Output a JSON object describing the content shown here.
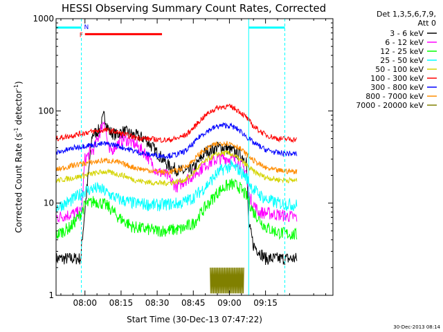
{
  "chart_data": {
    "type": "line",
    "title": "HESSI Observing Summary Count Rates, Corrected",
    "ylabel_main": "Corrected Count Rate (s",
    "ylabel_sup": "-1",
    "ylabel_mid": " detector",
    "ylabel_end": ")",
    "xlabel": "Start Time (30-Dec-13 07:47:22)",
    "timestamp": "30-Dec-2013 08:14",
    "y_scale": "log",
    "ylim": [
      1,
      1000
    ],
    "xlim_minutes": [
      -12,
      103
    ],
    "x_origin": "07:47:22",
    "x_ticks": [
      {
        "label": "08:00",
        "min": 0
      },
      {
        "label": "08:15",
        "min": 15
      },
      {
        "label": "08:30",
        "min": 30
      },
      {
        "label": "08:45",
        "min": 45
      },
      {
        "label": "09:00",
        "min": 60
      },
      {
        "label": "09:15",
        "min": 75
      }
    ],
    "y_ticks": [
      {
        "label": "1",
        "v": 1
      },
      {
        "label": "10",
        "v": 10
      },
      {
        "label": "100",
        "v": 100
      },
      {
        "label": "1000",
        "v": 1000
      }
    ],
    "legend_header": [
      "Det 1,3,5,6,7,9,",
      "Att 0"
    ],
    "legend_placement": "right",
    "series": [
      {
        "name": "3 - 6 keV",
        "color": "#000000",
        "x": [
          -12,
          -1.5,
          -1.4,
          3,
          6,
          8,
          10,
          13,
          16,
          20,
          25,
          30,
          35,
          40,
          43,
          46,
          50,
          55,
          58,
          60,
          62,
          64,
          67,
          68,
          70,
          75,
          80,
          88
        ],
        "y": [
          2.5,
          2.5,
          3.5,
          55,
          62,
          90,
          60,
          55,
          60,
          55,
          50,
          35,
          25,
          22,
          22,
          25,
          36,
          40,
          40,
          38,
          36,
          34,
          30,
          6,
          3.5,
          2.5,
          2.5,
          2.5
        ]
      },
      {
        "name": "6 - 12 keV",
        "color": "#ff00ff",
        "x": [
          -12,
          -1.5,
          0,
          4,
          8,
          10,
          12,
          16,
          20,
          25,
          30,
          34,
          38,
          42,
          45,
          50,
          55,
          58,
          61,
          64,
          67,
          68,
          72,
          80,
          88
        ],
        "y": [
          7,
          8,
          30,
          40,
          80,
          35,
          40,
          50,
          45,
          35,
          22,
          20,
          15,
          18,
          20,
          26,
          30,
          31,
          30,
          28,
          22,
          12,
          8,
          7.5,
          7
        ]
      },
      {
        "name": "12 - 25 keV",
        "color": "#00ff00",
        "x": [
          -12,
          -6,
          -2,
          0,
          2,
          4,
          7,
          10,
          14,
          20,
          30,
          40,
          45,
          50,
          55,
          58,
          61,
          64,
          67,
          70,
          75,
          80,
          88
        ],
        "y": [
          4.5,
          5.5,
          7.5,
          9.5,
          10,
          10.5,
          10,
          9,
          7,
          5.5,
          5,
          5.2,
          6,
          9,
          13,
          15,
          16,
          15,
          12,
          8,
          5.5,
          4.8,
          4.5
        ]
      },
      {
        "name": "25 - 50 keV",
        "color": "#00ffff",
        "x": [
          -12,
          -6,
          -2,
          0,
          2,
          4,
          7,
          10,
          14,
          20,
          30,
          40,
          45,
          50,
          55,
          58,
          61,
          64,
          67,
          70,
          75,
          80,
          88
        ],
        "y": [
          9,
          10.5,
          12.5,
          13.5,
          14,
          14.5,
          14,
          12.5,
          11,
          10,
          9.5,
          10,
          11.5,
          15,
          21,
          24,
          25,
          23,
          19,
          14,
          11,
          10,
          9.5
        ]
      },
      {
        "name": "50 - 100 keV",
        "color": "#d4d400",
        "x": [
          -12,
          -4,
          0,
          4,
          8,
          12,
          16,
          20,
          25,
          30,
          34,
          38,
          42,
          45,
          48,
          52,
          55,
          58,
          61,
          64,
          67,
          70,
          75,
          80,
          88
        ],
        "y": [
          17.5,
          19,
          20,
          21,
          22,
          21,
          20,
          18,
          17,
          16.5,
          16.5,
          17,
          18,
          21,
          26,
          31,
          34,
          35,
          34,
          30,
          26,
          22,
          19,
          18,
          17.5
        ]
      },
      {
        "name": "100 - 300 keV",
        "color": "#ff0000",
        "x": [
          -12,
          -4,
          0,
          4,
          8,
          12,
          16,
          20,
          25,
          30,
          34,
          38,
          42,
          45,
          48,
          52,
          55,
          58,
          61,
          64,
          67,
          70,
          75,
          80,
          88
        ],
        "y": [
          50,
          55,
          58,
          60,
          62,
          60,
          56,
          52,
          50,
          49,
          48,
          50,
          55,
          65,
          80,
          98,
          108,
          112,
          110,
          100,
          85,
          68,
          55,
          50,
          49
        ]
      },
      {
        "name": "300 - 800 keV",
        "color": "#0000ff",
        "x": [
          -12,
          -4,
          0,
          4,
          8,
          12,
          16,
          20,
          25,
          30,
          34,
          38,
          42,
          45,
          48,
          52,
          55,
          58,
          61,
          64,
          67,
          70,
          75,
          80,
          88
        ],
        "y": [
          35,
          40,
          42,
          43,
          44,
          43,
          40,
          37,
          34,
          33,
          32.5,
          33.5,
          37,
          44,
          54,
          63,
          68,
          70,
          68,
          62,
          53,
          45,
          38,
          35,
          34
        ]
      },
      {
        "name": "800 - 7000 keV",
        "color": "#ff8c00",
        "x": [
          -12,
          -4,
          0,
          4,
          8,
          12,
          16,
          20,
          25,
          30,
          34,
          38,
          42,
          45,
          48,
          52,
          55,
          58,
          61,
          64,
          67,
          70,
          75,
          80,
          88
        ],
        "y": [
          23,
          26,
          27,
          28,
          29,
          28.5,
          26.5,
          24.5,
          23,
          22,
          21.5,
          22.5,
          25,
          29,
          35,
          41,
          44,
          45,
          44,
          40,
          34,
          29,
          24,
          22.5,
          22
        ]
      },
      {
        "name": "7000 - 20000 keV",
        "color": "#808000",
        "x": [
          52,
          53,
          54,
          55,
          56,
          57,
          58,
          59,
          60,
          61,
          62,
          63,
          64,
          65,
          66
        ],
        "y": [
          1.5,
          2,
          1.2,
          2,
          1.3,
          1.9,
          1.2,
          2,
          1.4,
          1.8,
          1.2,
          2,
          1.5,
          1.9,
          1.3
        ]
      }
    ],
    "annotations": {
      "night_bars": [
        {
          "label": "N",
          "from_min": -12,
          "to_min": -1.5,
          "v": 800
        },
        {
          "label": "",
          "from_min": 68,
          "to_min": 83,
          "v": 800
        }
      ],
      "flare_bar": {
        "label": "F",
        "from_min": 0,
        "to_min": 32,
        "v": 680,
        "color": "#ff0000"
      },
      "night_color": "#00ffff",
      "night_lines_min": [
        -1.5,
        68,
        83
      ]
    }
  }
}
